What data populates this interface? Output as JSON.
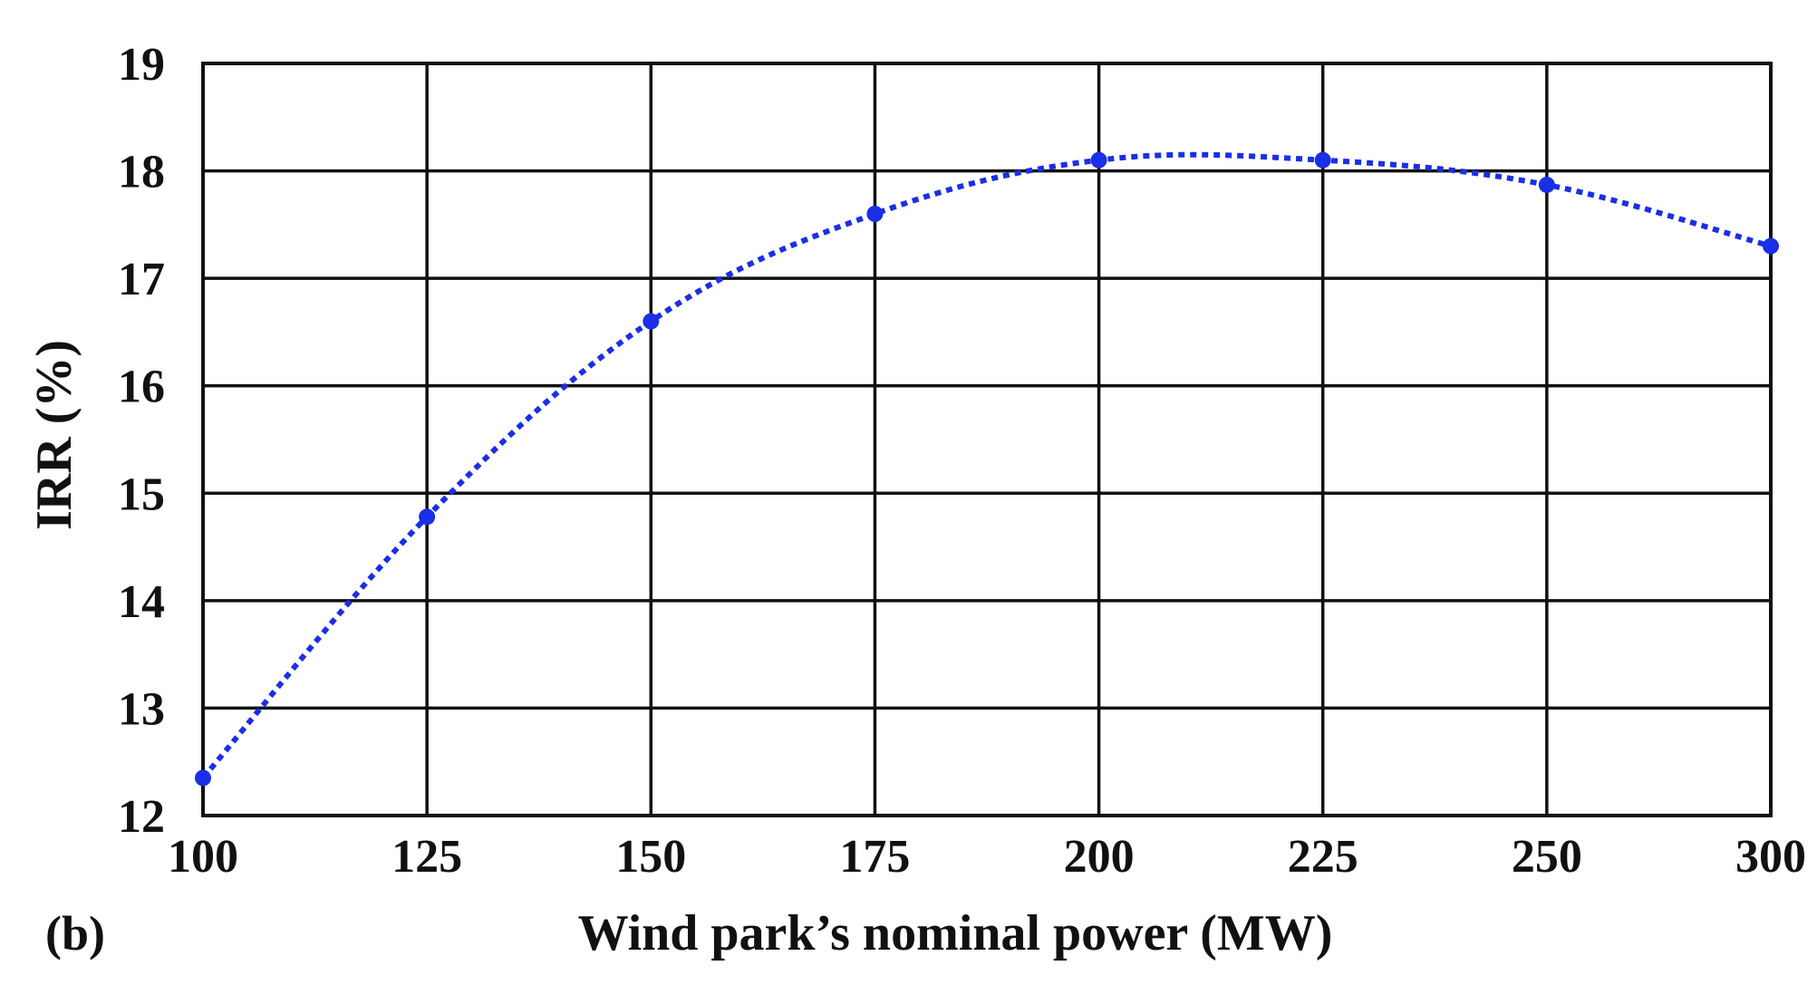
{
  "chart_data": {
    "type": "line",
    "title": "",
    "panel_label": "(b)",
    "xlabel": "Wind park’s nominal power (MW)",
    "ylabel": "IRR (%)",
    "xlim": [
      100,
      300
    ],
    "ylim": [
      12,
      19
    ],
    "x_ticks": [
      100,
      125,
      150,
      175,
      200,
      225,
      250,
      300
    ],
    "y_ticks": [
      12,
      13,
      14,
      15,
      16,
      17,
      18,
      19
    ],
    "grid": true,
    "legend": "none",
    "series": [
      {
        "x": [
          100,
          125,
          150,
          175,
          200,
          225,
          250,
          300
        ],
        "y": [
          12.35,
          14.78,
          16.6,
          17.6,
          18.1,
          18.1,
          17.87,
          17.3
        ],
        "color": "#1a2fe6",
        "line_style": "dotted",
        "marker": "circle"
      }
    ]
  }
}
